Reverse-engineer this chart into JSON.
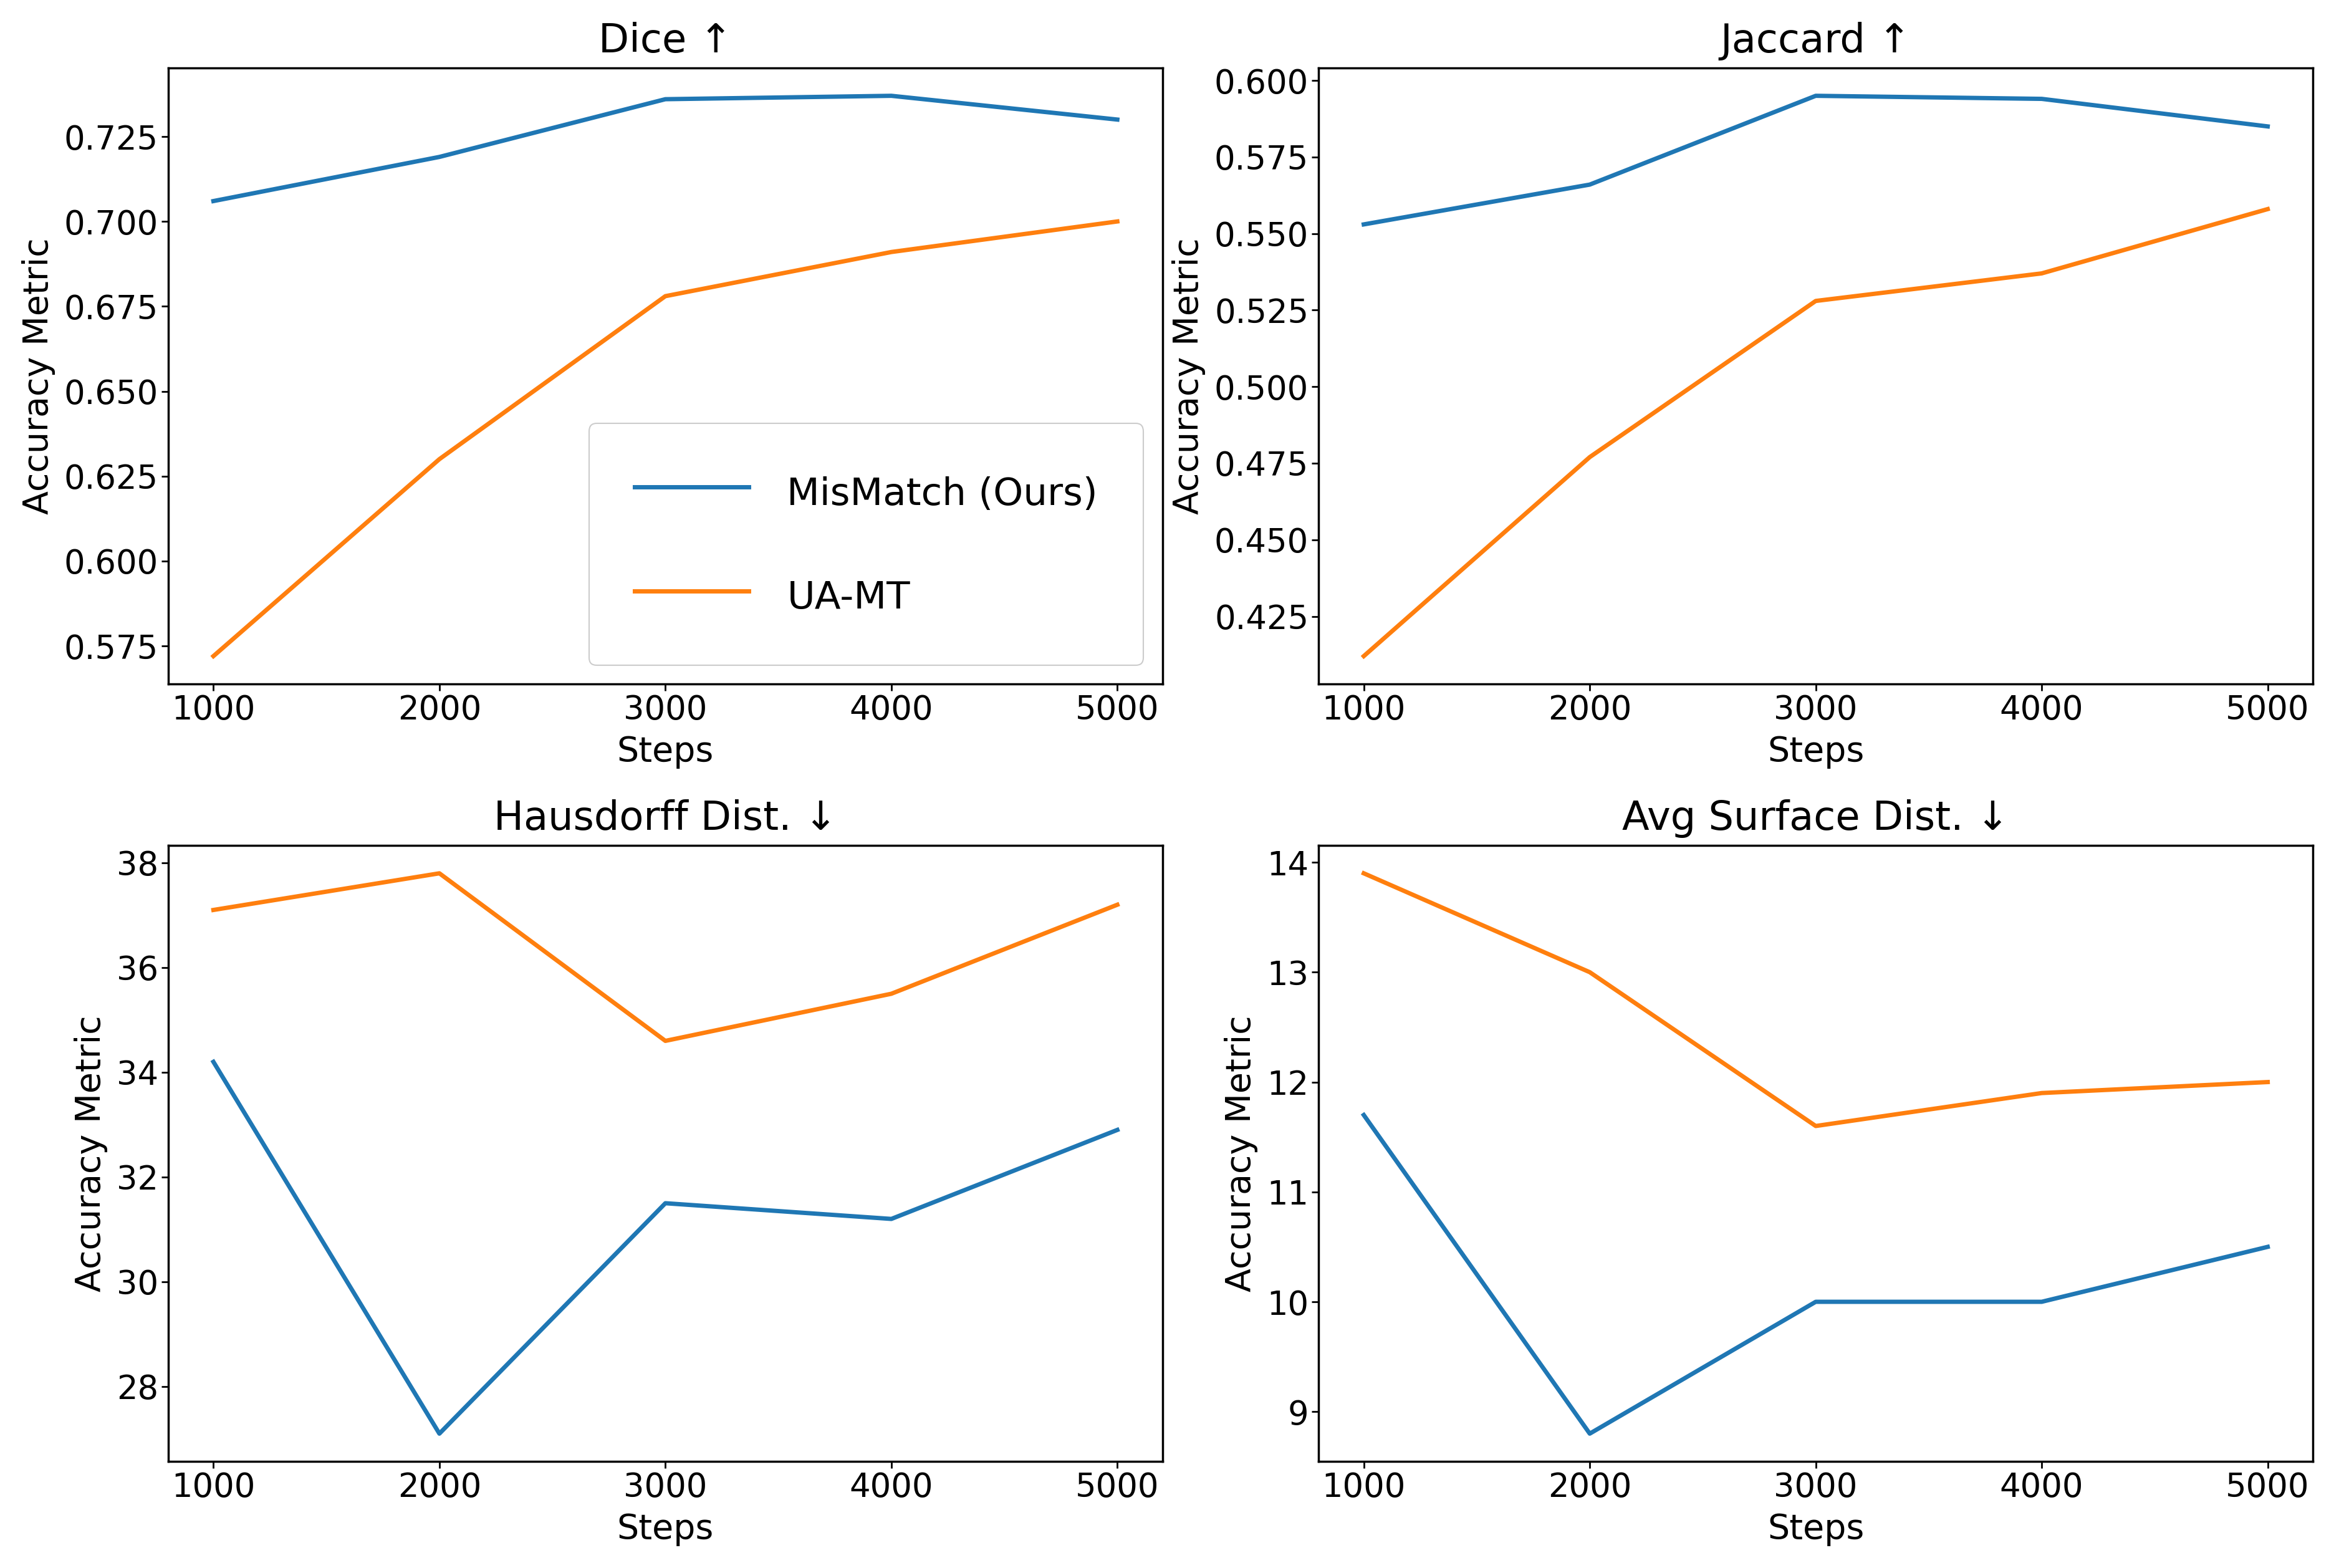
{
  "steps": [
    1000,
    2000,
    3000,
    4000,
    5000
  ],
  "dice": {
    "title": "Dice ↑",
    "mismatch": [
      0.706,
      0.719,
      0.736,
      0.737,
      0.73
    ],
    "uamt": [
      0.572,
      0.63,
      0.678,
      0.691,
      0.7
    ]
  },
  "jaccard": {
    "title": "Jaccard ↑",
    "mismatch": [
      0.553,
      0.566,
      0.595,
      0.594,
      0.585
    ],
    "uamt": [
      0.412,
      0.477,
      0.528,
      0.537,
      0.558
    ]
  },
  "hausdorff": {
    "title": "Hausdorff Dist. ↓",
    "mismatch": [
      34.2,
      27.1,
      31.5,
      31.2,
      32.9
    ],
    "uamt": [
      37.1,
      37.8,
      34.6,
      35.5,
      37.2
    ]
  },
  "avg_surface": {
    "title": "Avg Surface Dist. ↓",
    "mismatch": [
      11.7,
      8.8,
      10.0,
      10.0,
      10.5
    ],
    "uamt": [
      13.9,
      13.0,
      11.6,
      11.9,
      12.0
    ]
  },
  "legend_labels": [
    "MisMatch (Ours)",
    "UA-MT"
  ],
  "xlabel": "Steps",
  "ylabel": "Accuracy Metric",
  "color_mismatch": "#1f77b4",
  "color_uamt": "#ff7f0e",
  "linewidth": 5.0,
  "title_fontsize": 46,
  "label_fontsize": 40,
  "tick_fontsize": 38,
  "legend_fontsize": 44,
  "legend_handlelength": 3.0,
  "legend_loc": "lower center",
  "spine_linewidth": 2.5
}
